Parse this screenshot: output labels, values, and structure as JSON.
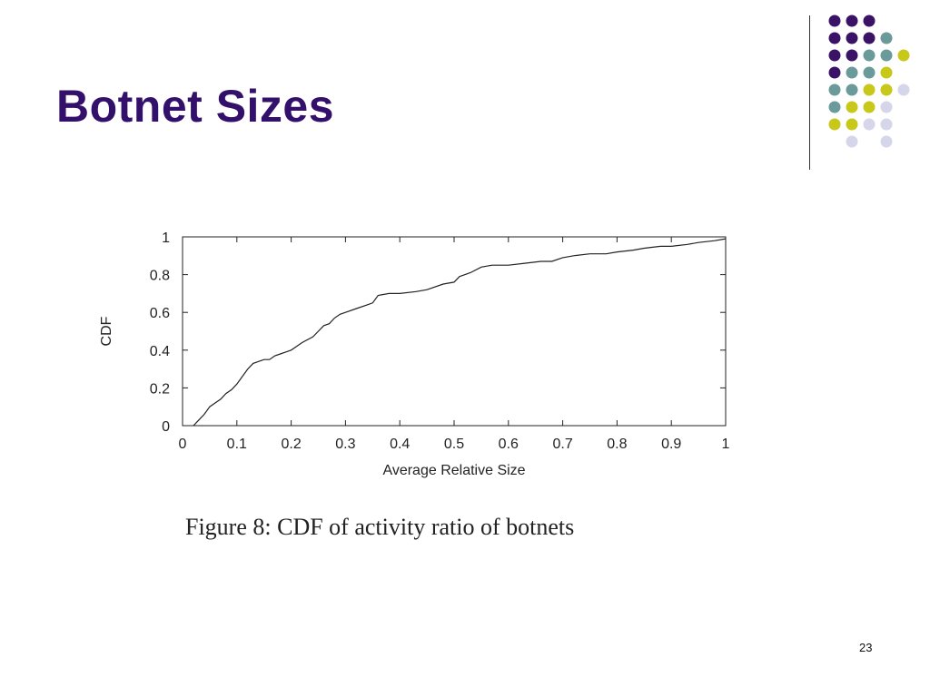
{
  "slide": {
    "title": "Botnet Sizes",
    "caption": "Figure 8: CDF of activity ratio of botnets",
    "page_number": "23"
  },
  "decoration": {
    "dot_colors": {
      "purple": "#3a1366",
      "teal": "#6b9a9a",
      "yellow": "#c8c81a",
      "lavender": "#d6d6ea"
    },
    "dot_grid": [
      [
        "purple",
        "purple",
        "purple",
        null,
        null
      ],
      [
        "purple",
        "purple",
        "purple",
        "teal",
        null
      ],
      [
        "purple",
        "purple",
        "teal",
        "teal",
        "yellow"
      ],
      [
        "purple",
        "teal",
        "teal",
        "yellow",
        null
      ],
      [
        "teal",
        "teal",
        "yellow",
        "yellow",
        "lavender"
      ],
      [
        "teal",
        "yellow",
        "yellow",
        "lavender",
        null
      ],
      [
        "yellow",
        "yellow",
        "lavender",
        "lavender",
        null
      ],
      [
        null,
        "lavender",
        null,
        "lavender",
        null
      ]
    ]
  },
  "chart_data": {
    "type": "line",
    "title": "",
    "xlabel": "Average Relative Size",
    "ylabel": "CDF",
    "xlim": [
      0,
      1
    ],
    "ylim": [
      0,
      1
    ],
    "x_ticks": [
      "0",
      "0.1",
      "0.2",
      "0.3",
      "0.4",
      "0.5",
      "0.6",
      "0.7",
      "0.8",
      "0.9",
      "1"
    ],
    "y_ticks": [
      "0",
      "0.2",
      "0.4",
      "0.6",
      "0.8",
      "1"
    ],
    "grid": false,
    "line_color": "#222222",
    "series": [
      {
        "name": "",
        "x": [
          0.02,
          0.03,
          0.04,
          0.05,
          0.06,
          0.07,
          0.08,
          0.09,
          0.1,
          0.11,
          0.12,
          0.13,
          0.14,
          0.15,
          0.16,
          0.17,
          0.18,
          0.19,
          0.2,
          0.22,
          0.24,
          0.25,
          0.26,
          0.27,
          0.28,
          0.29,
          0.3,
          0.32,
          0.34,
          0.35,
          0.36,
          0.38,
          0.4,
          0.43,
          0.45,
          0.48,
          0.5,
          0.51,
          0.53,
          0.55,
          0.57,
          0.6,
          0.63,
          0.66,
          0.68,
          0.7,
          0.72,
          0.75,
          0.78,
          0.8,
          0.83,
          0.85,
          0.88,
          0.9,
          0.93,
          0.95,
          0.98,
          1.0
        ],
        "y": [
          0.0,
          0.03,
          0.06,
          0.1,
          0.12,
          0.14,
          0.17,
          0.19,
          0.22,
          0.26,
          0.3,
          0.33,
          0.34,
          0.35,
          0.35,
          0.37,
          0.38,
          0.39,
          0.4,
          0.44,
          0.47,
          0.5,
          0.53,
          0.54,
          0.57,
          0.59,
          0.6,
          0.62,
          0.64,
          0.65,
          0.69,
          0.7,
          0.7,
          0.71,
          0.72,
          0.75,
          0.76,
          0.79,
          0.81,
          0.84,
          0.85,
          0.85,
          0.86,
          0.87,
          0.87,
          0.89,
          0.9,
          0.91,
          0.91,
          0.92,
          0.93,
          0.94,
          0.95,
          0.95,
          0.96,
          0.97,
          0.98,
          0.99
        ]
      }
    ]
  }
}
